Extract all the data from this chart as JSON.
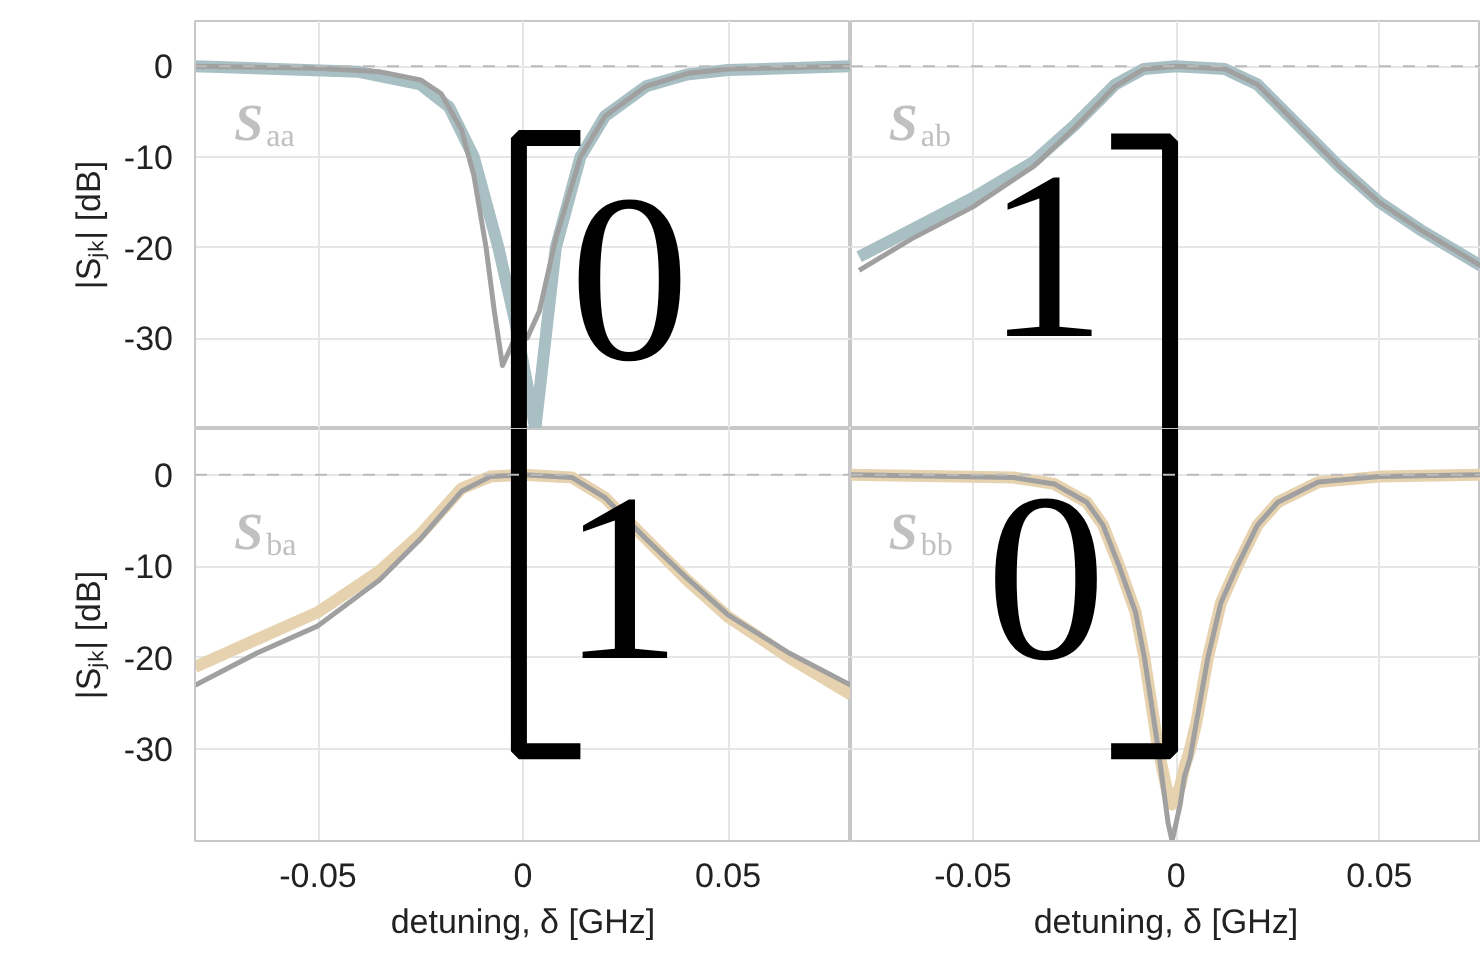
{
  "chart_data": [
    {
      "type": "line",
      "xlim": [
        -0.08,
        0.08
      ],
      "ylim": [
        -40,
        5
      ],
      "yticks": [
        0,
        -10,
        -20,
        -30
      ],
      "ylabel": "|Sⱼₖ| [dB]",
      "tick_labels": "y",
      "grid": true,
      "line_style": "solid",
      "ref_lines": [
        {
          "axis": "y",
          "value": 0,
          "color": "#bbbbbb",
          "line_style": "dashed"
        }
      ],
      "annotations": [
        "S$_{aa}$",
        "0"
      ],
      "series": [
        {
          "color": "#a8c0c4",
          "x": [
            -0.08,
            -0.04,
            -0.025,
            -0.018,
            -0.012,
            -0.006,
            -0.002,
            0.001,
            0.003,
            0.005,
            0.008,
            0.014,
            0.02,
            0.03,
            0.04,
            0.05,
            0.08
          ],
          "values": [
            0,
            -0.6,
            -2,
            -4.5,
            -10,
            -20,
            -28,
            -35,
            -40,
            -32,
            -20,
            -10,
            -5.5,
            -2.2,
            -0.9,
            -0.4,
            0
          ]
        },
        {
          "color": "#a0a0a0",
          "x": [
            -0.08,
            -0.05,
            -0.035,
            -0.025,
            -0.02,
            -0.015,
            -0.012,
            -0.009,
            -0.007,
            -0.005,
            -0.002,
            0.001,
            0.004,
            0.008,
            0.014,
            0.02,
            0.03,
            0.04,
            0.05,
            0.08
          ],
          "values": [
            0,
            -0.2,
            -0.6,
            -1.5,
            -3,
            -7,
            -12,
            -20,
            -27,
            -33,
            -30,
            -30,
            -27,
            -19,
            -10,
            -5.5,
            -2.2,
            -0.8,
            -0.3,
            0
          ]
        }
      ]
    },
    {
      "type": "line",
      "xlim": [
        -0.08,
        0.075
      ],
      "ylim": [
        -40,
        5
      ],
      "yticks": [
        0,
        -10,
        -20,
        -30
      ],
      "tick_labels": false,
      "grid": true,
      "line_style": "solid",
      "ref_lines": [
        {
          "axis": "y",
          "value": 0,
          "color": "#bbbbbb",
          "line_style": "dashed"
        }
      ],
      "annotations": [
        "S$_{ab}$",
        "1"
      ],
      "series": [
        {
          "color": "#a8c0c4",
          "x": [
            -0.078,
            -0.065,
            -0.05,
            -0.035,
            -0.025,
            -0.015,
            -0.008,
            0,
            0.012,
            0.02,
            0.03,
            0.04,
            0.05,
            0.06,
            0.075
          ],
          "values": [
            -21,
            -18,
            -14.5,
            -10.5,
            -6.5,
            -2,
            -0.3,
            0,
            -0.3,
            -2,
            -6.5,
            -11,
            -15,
            -18,
            -22
          ]
        },
        {
          "color": "#a0a0a0",
          "x": [
            -0.078,
            -0.065,
            -0.05,
            -0.035,
            -0.025,
            -0.015,
            -0.008,
            0,
            0.012,
            0.02,
            0.03,
            0.04,
            0.05,
            0.06,
            0.075
          ],
          "values": [
            -22.5,
            -19,
            -15.5,
            -11,
            -6.8,
            -2.2,
            -0.3,
            0,
            -0.3,
            -2,
            -6.5,
            -11,
            -15,
            -18,
            -22
          ]
        }
      ]
    },
    {
      "type": "line",
      "xlim": [
        -0.08,
        0.08
      ],
      "ylim": [
        -40,
        5
      ],
      "xticks": [
        -0.05,
        0,
        0.05
      ],
      "yticks": [
        0,
        -10,
        -20,
        -30
      ],
      "xlabel": "detuning, δ [GHz]",
      "ylabel": "|Sⱼₖ| [dB]",
      "grid": true,
      "line_style": "solid",
      "ref_lines": [
        {
          "axis": "y",
          "value": 0,
          "color": "#bbbbbb",
          "line_style": "dashed"
        }
      ],
      "annotations": [
        "S$_{ba}$",
        "1"
      ],
      "series": [
        {
          "color": "#e6d2ae",
          "x": [
            -0.08,
            -0.065,
            -0.05,
            -0.035,
            -0.025,
            -0.015,
            -0.008,
            0,
            0.012,
            0.02,
            0.03,
            0.04,
            0.05,
            0.065,
            0.08
          ],
          "values": [
            -21,
            -18,
            -15,
            -10.5,
            -6.5,
            -1.5,
            -0.2,
            0,
            -0.3,
            -2.5,
            -7,
            -11.5,
            -15.5,
            -20,
            -24
          ]
        },
        {
          "color": "#a0a0a0",
          "x": [
            -0.08,
            -0.065,
            -0.05,
            -0.035,
            -0.025,
            -0.015,
            -0.008,
            0,
            0.012,
            0.02,
            0.03,
            0.04,
            0.05,
            0.065,
            0.08
          ],
          "values": [
            -23,
            -19.5,
            -16.5,
            -11.5,
            -7,
            -1.8,
            -0.2,
            0,
            -0.3,
            -2.5,
            -7,
            -11.3,
            -15.3,
            -19.5,
            -23
          ]
        }
      ]
    },
    {
      "type": "line",
      "xlim": [
        -0.08,
        0.075
      ],
      "ylim": [
        -40,
        5
      ],
      "xticks": [
        -0.05,
        0,
        0.05
      ],
      "yticks": [
        0,
        -10,
        -20,
        -30
      ],
      "xlabel": "detuning, δ [GHz]",
      "tick_labels": "x",
      "grid": true,
      "line_style": "solid",
      "ref_lines": [
        {
          "axis": "y",
          "value": 0,
          "color": "#bbbbbb",
          "line_style": "dashed"
        }
      ],
      "annotations": [
        "S$_{bb}$",
        "0"
      ],
      "series": [
        {
          "color": "#e6d2ae",
          "x": [
            -0.08,
            -0.04,
            -0.03,
            -0.022,
            -0.018,
            -0.014,
            -0.01,
            -0.0078,
            -0.0044,
            -0.002,
            -0.001,
            0.001,
            0.002,
            0.0034,
            0.005,
            0.0078,
            0.011,
            0.015,
            0.02,
            0.025,
            0.035,
            0.05,
            0.075
          ],
          "values": [
            0,
            -0.3,
            -1,
            -3,
            -5.5,
            -10,
            -15,
            -20,
            -30,
            -35,
            -36,
            -34,
            -32,
            -30,
            -27,
            -20,
            -14,
            -10,
            -5.5,
            -3,
            -0.8,
            -0.2,
            0
          ]
        },
        {
          "color": "#a0a0a0",
          "x": [
            -0.08,
            -0.04,
            -0.03,
            -0.022,
            -0.018,
            -0.014,
            -0.01,
            -0.0078,
            -0.0044,
            -0.002,
            -0.001,
            0.001,
            0.002,
            0.0034,
            0.005,
            0.0078,
            0.011,
            0.015,
            0.02,
            0.025,
            0.035,
            0.05,
            0.075
          ],
          "values": [
            0,
            -0.3,
            -1,
            -3,
            -5.5,
            -10,
            -15,
            -20,
            -30,
            -38,
            -40,
            -36,
            -33,
            -31,
            -27,
            -20,
            -14,
            -10,
            -5.5,
            -3,
            -0.8,
            -0.2,
            0
          ]
        }
      ]
    }
  ]
}
